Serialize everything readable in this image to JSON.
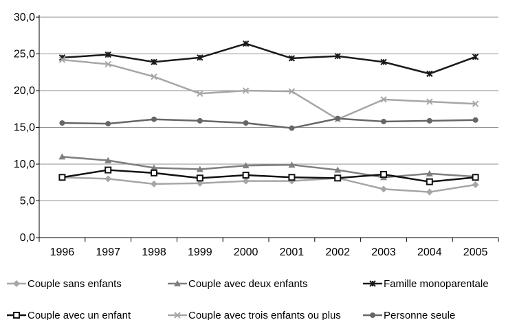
{
  "chart_data": {
    "type": "line",
    "title": "",
    "xlabel": "",
    "ylabel": "",
    "x": [
      "1996",
      "1997",
      "1998",
      "1999",
      "2000",
      "2001",
      "2002",
      "2003",
      "2004",
      "2005"
    ],
    "y_ticks": [
      "0,0",
      "5,0",
      "10,0",
      "15,0",
      "20,0",
      "25,0",
      "30,0"
    ],
    "ylim": [
      0,
      30
    ],
    "grid": "horizontal",
    "legend_position": "bottom",
    "series": [
      {
        "name": "Couple sans enfants",
        "color": "#a6a6a6",
        "marker": "diamond",
        "values": [
          8.2,
          8.0,
          7.3,
          7.4,
          7.7,
          7.7,
          8.1,
          6.6,
          6.2,
          7.2
        ]
      },
      {
        "name": "Couple avec deux enfants",
        "color": "#7f7f7f",
        "marker": "triangle",
        "values": [
          11.0,
          10.5,
          9.5,
          9.3,
          9.8,
          9.9,
          9.2,
          8.2,
          8.7,
          8.3
        ]
      },
      {
        "name": "Famille monoparentale",
        "color": "#1a1a1a",
        "marker": "asterisk",
        "values": [
          24.5,
          24.9,
          23.9,
          24.5,
          26.4,
          24.4,
          24.7,
          23.9,
          22.3,
          24.6
        ]
      },
      {
        "name": "Couple avec un enfant",
        "color": "#111111",
        "marker": "square",
        "values": [
          8.2,
          9.2,
          8.8,
          8.1,
          8.5,
          8.2,
          8.1,
          8.6,
          7.6,
          8.2
        ]
      },
      {
        "name": "Couple  avec trois enfants ou plus",
        "color": "#a6a6a6",
        "marker": "x",
        "values": [
          24.2,
          23.6,
          21.9,
          19.6,
          20.0,
          19.9,
          16.1,
          18.8,
          18.5,
          18.2
        ]
      },
      {
        "name": "Personne seule",
        "color": "#666666",
        "marker": "circle",
        "values": [
          15.6,
          15.5,
          16.1,
          15.9,
          15.6,
          14.9,
          16.2,
          15.8,
          15.9,
          16.0
        ]
      }
    ]
  }
}
